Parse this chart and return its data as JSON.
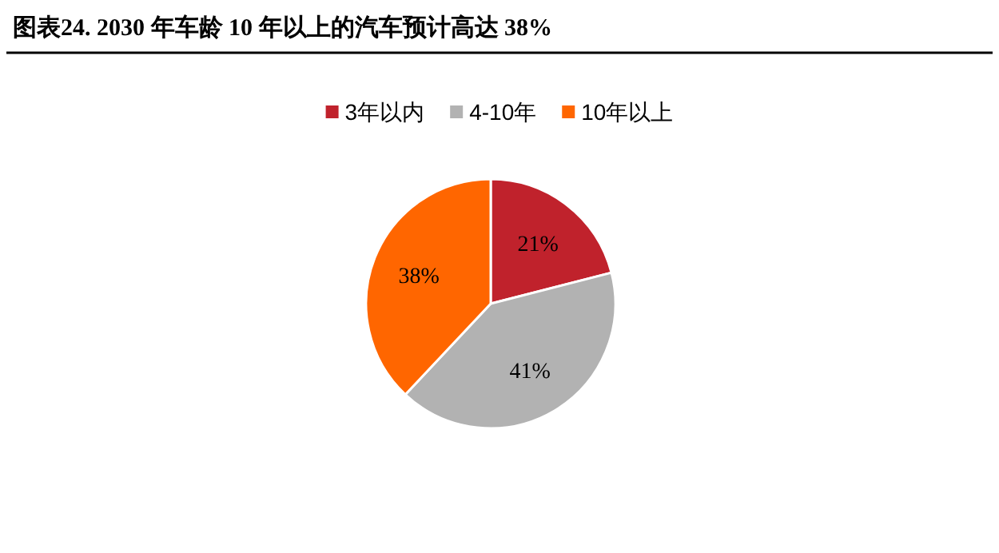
{
  "chart_data": {
    "type": "pie",
    "title": "图表24. 2030 年车龄 10 年以上的汽车预计高达 38%",
    "categories": [
      "3年以内",
      "4-10年",
      "10年以上"
    ],
    "values": [
      21,
      41,
      38
    ],
    "colors": [
      "#c0222c",
      "#b2b2b2",
      "#ff6600"
    ],
    "value_labels": [
      "21%",
      "41%",
      "38%"
    ],
    "legend": "top"
  }
}
